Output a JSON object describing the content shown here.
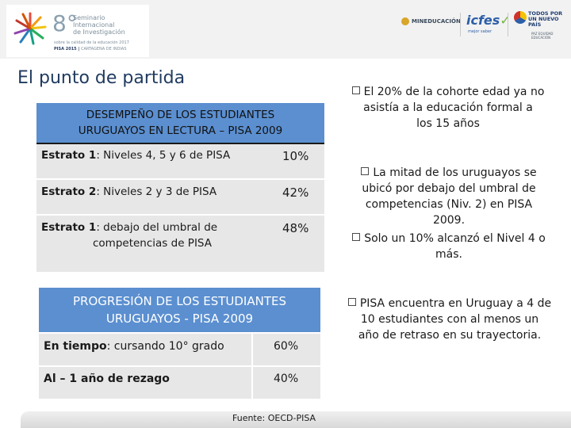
{
  "header": {
    "seminar_number": "8°",
    "seminar_lines": [
      "Seminario",
      "Internacional",
      "de Investigación"
    ],
    "seminar_sub": "sobre la calidad de la educación 2017",
    "pisa_tag": "PISA 2015",
    "pisa_place": "CARTAGENA DE INDIAS",
    "mineduc": "MINEDUCACIÓN",
    "icfes": "icfes",
    "icfes_check": "✓",
    "icfes_sub": "mejor saber",
    "todos": "TODOS POR UN NUEVO PAÍS",
    "todos_sub": "PAZ EQUIDAD EDUCACIÓN"
  },
  "title": "El punto de partida",
  "table1": {
    "heading_line1": "DESEMPEÑO DE LOS ESTUDIANTES",
    "heading_line2": "URUGUAYOS EN LECTURA – PISA 2009",
    "rows": [
      {
        "bold": "Estrato 1",
        "label": ": Niveles 4, 5 y 6 de PISA",
        "value": "10%"
      },
      {
        "bold": "Estrato 2",
        "label": ": Niveles 2 y 3 de PISA",
        "value": "42%"
      },
      {
        "bold": "Estrato 1",
        "label": ": debajo del umbral de",
        "label2": "competencias de PISA",
        "value": "48%"
      }
    ]
  },
  "table2": {
    "heading_line1": "PROGRESIÓN DE LOS ESTUDIANTES",
    "heading_line2": "URUGUAYOS - PISA 2009",
    "rows": [
      {
        "bold": "En tiempo",
        "label": ": cursando 10° grado",
        "value": "60%"
      },
      {
        "bold": "Al – 1 año de rezago",
        "label": "",
        "value": "40%"
      }
    ]
  },
  "bullets": [
    {
      "lines": [
        "El 20% de la cohorte edad ya no",
        "asistía a la educación formal a",
        "los 15 años"
      ]
    },
    {
      "lines": [
        "La mitad de los uruguayos se",
        "ubicó por debajo del umbral de",
        "competencias (Niv. 2) en PISA",
        "2009."
      ]
    },
    {
      "lines": [
        "Solo un 10% alcanzó el Nivel 4 o",
        "más."
      ]
    },
    {
      "lines": [
        "PISA encuentra en Uruguay a 4 de",
        "10 estudiantes con al menos un",
        "año de retraso en su trayectoria."
      ]
    }
  ],
  "source": "Fuente: OECD-PISA",
  "colors": {
    "table_header": "#5b8fd0",
    "table_body": "#e7e7e7",
    "title": "#1f3a5f"
  }
}
